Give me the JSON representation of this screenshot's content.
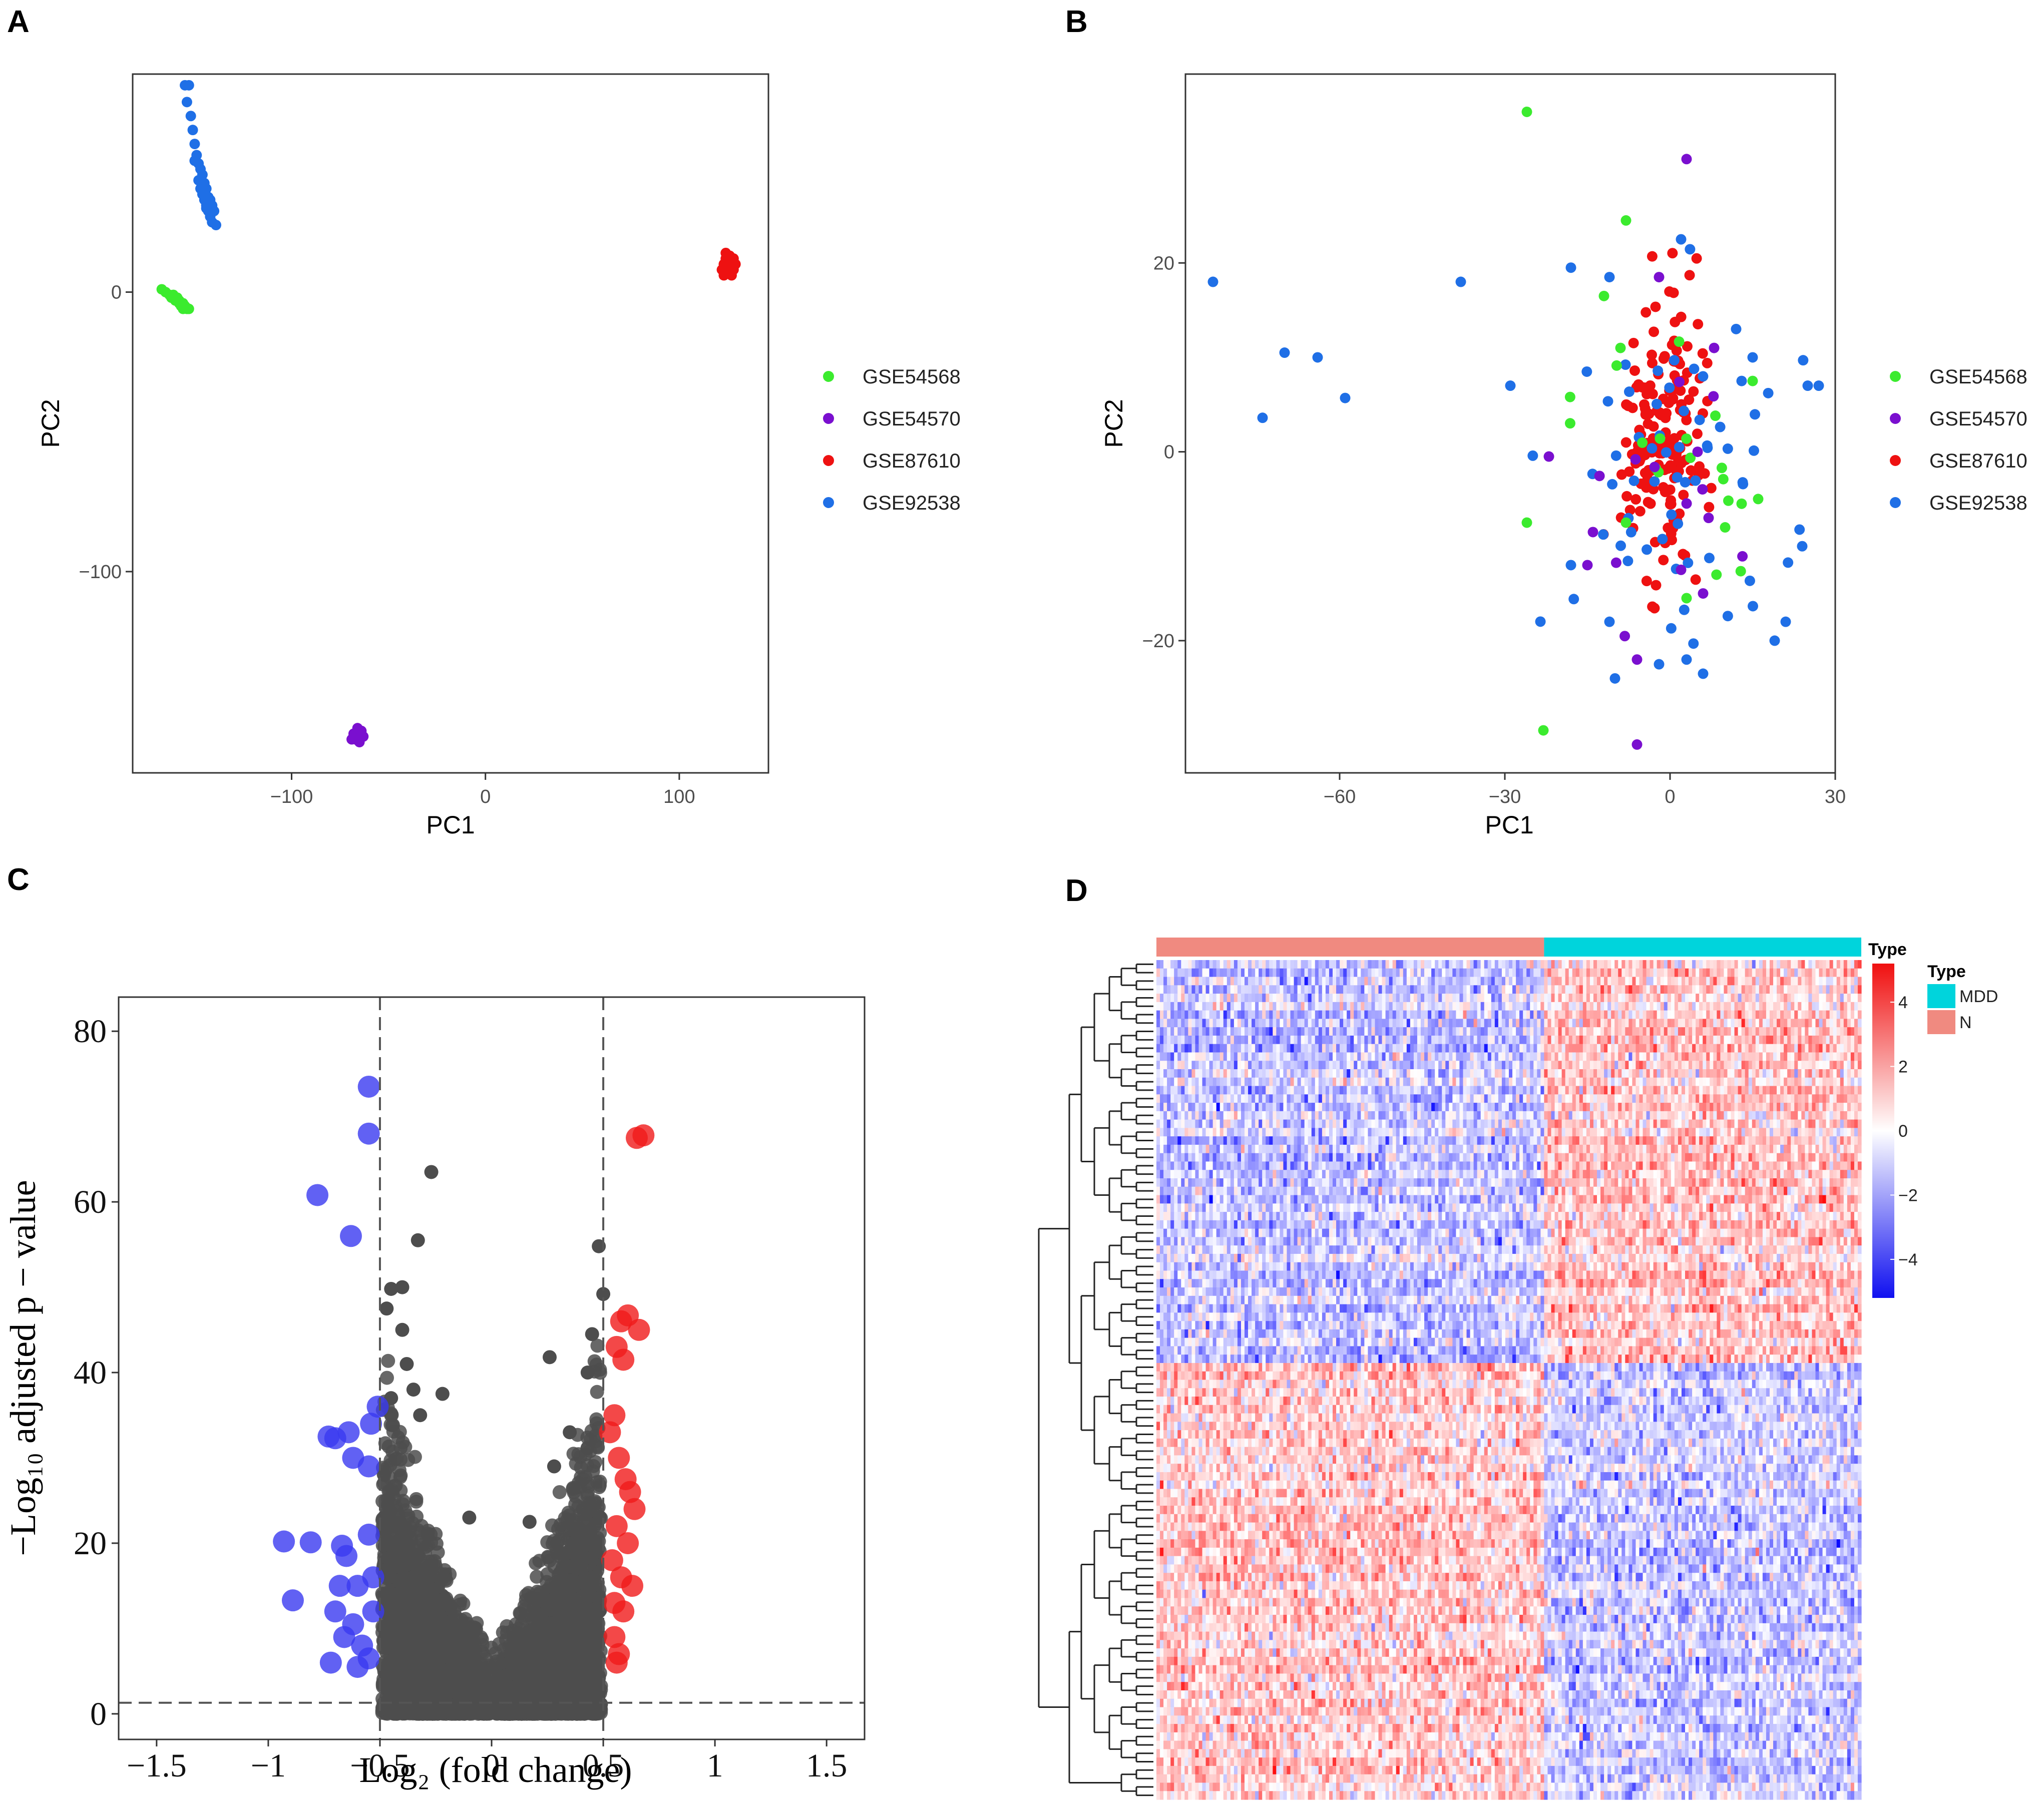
{
  "panels": [
    {
      "letter": "A"
    },
    {
      "letter": "B"
    },
    {
      "letter": "C"
    },
    {
      "letter": "D"
    }
  ],
  "colors": {
    "GSE54568": "#3BEB2E",
    "GSE54570": "#7A0FCF",
    "GSE87610": "#EE1111",
    "GSE92538": "#1F6FE6",
    "down": "#3A3AF0",
    "up": "#F01A1A",
    "ns": "#4D4D4D",
    "MDD": "#00D4DC",
    "N": "#F08A80",
    "heat_low": "#1010F0",
    "heat_mid": "#FFFFFF",
    "heat_high": "#F01010"
  },
  "chart_data": [
    {
      "panel": "A",
      "type": "scatter",
      "xlabel": "PC1",
      "ylabel": "PC2",
      "xlim": [
        -182,
        146
      ],
      "ylim": [
        -172,
        78
      ],
      "xticks": [
        {
          "v": -100,
          "label": "−100"
        },
        {
          "v": 0,
          "label": "0"
        },
        {
          "v": 100,
          "label": "100"
        }
      ],
      "yticks": [
        {
          "v": -100,
          "label": "−100"
        },
        {
          "v": 0,
          "label": "0"
        }
      ],
      "legend": [
        "GSE54568",
        "GSE54570",
        "GSE87610",
        "GSE92538"
      ],
      "legend_position": "right",
      "clusters": [
        {
          "name": "GSE92538",
          "points": [
            [
              -155,
              74
            ],
            [
              -153,
              74
            ],
            [
              -154,
              68
            ],
            [
              -152,
              63
            ],
            [
              -151,
              58
            ],
            [
              -150,
              53
            ],
            [
              -149,
              49
            ],
            [
              -148,
              46
            ],
            [
              -147,
              44
            ],
            [
              -146,
              42
            ],
            [
              -148,
              40
            ],
            [
              -145,
              39
            ],
            [
              -147,
              37
            ],
            [
              -144,
              37
            ],
            [
              -146,
              35
            ],
            [
              -143,
              34
            ],
            [
              -145,
              33
            ],
            [
              -142,
              33
            ],
            [
              -144,
              31
            ],
            [
              -141,
              31
            ],
            [
              -143,
              29
            ],
            [
              -140,
              29
            ],
            [
              -142,
              27
            ],
            [
              -141,
              25
            ],
            [
              -139,
              24
            ],
            [
              -150,
              47
            ],
            [
              -146,
              38
            ],
            [
              -144,
              30
            ]
          ]
        },
        {
          "name": "GSE54568",
          "points": [
            [
              -167,
              1
            ],
            [
              -165,
              0
            ],
            [
              -163,
              -1
            ],
            [
              -162,
              -2
            ],
            [
              -160,
              -3
            ],
            [
              -159,
              -2
            ],
            [
              -158,
              -4
            ],
            [
              -157,
              -5
            ],
            [
              -156,
              -4
            ],
            [
              -155,
              -5
            ],
            [
              -154,
              -6
            ],
            [
              -153,
              -6
            ],
            [
              -161,
              -1
            ],
            [
              -158,
              -3
            ],
            [
              -156,
              -6
            ]
          ]
        },
        {
          "name": "GSE87610",
          "points": [
            [
              124,
              14
            ],
            [
              126,
              13
            ],
            [
              128,
              12
            ],
            [
              125,
              11
            ],
            [
              127,
              10
            ],
            [
              123,
              10
            ],
            [
              126,
              9
            ],
            [
              124,
              8
            ],
            [
              128,
              8
            ],
            [
              125,
              7
            ],
            [
              127,
              6
            ],
            [
              123,
              6
            ],
            [
              126,
              12
            ],
            [
              129,
              10
            ],
            [
              124,
              12
            ],
            [
              122,
              8
            ]
          ]
        },
        {
          "name": "GSE54570",
          "points": [
            [
              -68,
              -158
            ],
            [
              -66,
              -159
            ],
            [
              -64,
              -157
            ],
            [
              -67,
              -160
            ],
            [
              -65,
              -161
            ],
            [
              -63,
              -159
            ],
            [
              -66,
              -156
            ],
            [
              -69,
              -160
            ]
          ]
        }
      ]
    },
    {
      "panel": "B",
      "type": "scatter",
      "xlabel": "PC1",
      "ylabel": "PC2",
      "xlim": [
        -88,
        30
      ],
      "ylim": [
        -34,
        40
      ],
      "xticks": [
        {
          "v": -60,
          "label": "−60"
        },
        {
          "v": -30,
          "label": "−30"
        },
        {
          "v": 0,
          "label": "0"
        },
        {
          "v": 30,
          "label": "30"
        }
      ],
      "yticks": [
        {
          "v": -20,
          "label": "−20"
        },
        {
          "v": 0,
          "label": "0"
        },
        {
          "v": 20,
          "label": "20"
        }
      ],
      "legend": [
        "GSE54568",
        "GSE54570",
        "GSE87610",
        "GSE92538"
      ],
      "legend_position": "right",
      "outliers": [
        {
          "name": "GSE92538",
          "points": [
            [
              -83,
              18
            ],
            [
              -38,
              18
            ],
            [
              -70,
              10.5
            ],
            [
              -64,
              10
            ],
            [
              -59,
              5.7
            ],
            [
              -74,
              3.6
            ],
            [
              -29,
              7
            ],
            [
              -11,
              -18
            ],
            [
              -2,
              -22.5
            ],
            [
              3,
              -22
            ],
            [
              6,
              -23.5
            ],
            [
              21,
              -18
            ],
            [
              19,
              -20
            ],
            [
              24,
              -10
            ],
            [
              -18,
              -12
            ],
            [
              2,
              22.5
            ],
            [
              -18,
              19.5
            ],
            [
              -11,
              18.5
            ],
            [
              12,
              13
            ],
            [
              15,
              10
            ],
            [
              25,
              7
            ],
            [
              27,
              7
            ],
            [
              13,
              7.5
            ]
          ]
        },
        {
          "name": "GSE54568",
          "points": [
            [
              -26,
              36
            ],
            [
              -8,
              24.5
            ],
            [
              -12,
              16.5
            ],
            [
              -23,
              -29.5
            ],
            [
              -26,
              -7.5
            ],
            [
              -8,
              -7.5
            ],
            [
              15,
              7.5
            ],
            [
              16,
              -5
            ],
            [
              13,
              -5.5
            ],
            [
              10,
              -8
            ],
            [
              3,
              -15.5
            ],
            [
              -9,
              11
            ]
          ]
        },
        {
          "name": "GSE54570",
          "points": [
            [
              3,
              31
            ],
            [
              -2,
              18.5
            ],
            [
              -6,
              -22
            ],
            [
              -6,
              -31
            ],
            [
              6,
              -15
            ],
            [
              -22,
              -0.5
            ],
            [
              8,
              11
            ],
            [
              7,
              -7
            ],
            [
              -14,
              -8.5
            ],
            [
              -15,
              -12
            ],
            [
              2,
              -12.5
            ],
            [
              5,
              0
            ]
          ]
        }
      ]
    },
    {
      "panel": "C",
      "type": "scatter",
      "xlabel": "Log₂ (fold change)",
      "ylabel": "−Log₁₀ adjusted p − value",
      "xlim": [
        -1.67,
        1.67
      ],
      "ylim": [
        -3,
        84
      ],
      "xticks": [
        {
          "v": -1.5,
          "label": "−1.5"
        },
        {
          "v": -1,
          "label": "−1"
        },
        {
          "v": -0.5,
          "label": "−0.5"
        },
        {
          "v": 0,
          "label": "0"
        },
        {
          "v": 0.5,
          "label": "0.5"
        },
        {
          "v": 1,
          "label": "1"
        },
        {
          "v": 1.5,
          "label": "1.5"
        }
      ],
      "yticks": [
        {
          "v": 0,
          "label": "0"
        },
        {
          "v": 20,
          "label": "20"
        },
        {
          "v": 40,
          "label": "40"
        },
        {
          "v": 60,
          "label": "60"
        },
        {
          "v": 80,
          "label": "80"
        }
      ],
      "vlines": [
        -0.5,
        0.5
      ],
      "hline": 1.3,
      "down": [
        [
          -0.55,
          73.5
        ],
        [
          -0.55,
          68
        ],
        [
          -0.78,
          60.8
        ],
        [
          -0.63,
          56
        ],
        [
          -0.51,
          36
        ],
        [
          -0.54,
          34
        ],
        [
          -0.73,
          32.5
        ],
        [
          -0.7,
          32.3
        ],
        [
          -0.64,
          33
        ],
        [
          -0.62,
          30
        ],
        [
          -0.55,
          29
        ],
        [
          -0.93,
          20.2
        ],
        [
          -0.81,
          20.1
        ],
        [
          -0.67,
          19.7
        ],
        [
          -0.65,
          18.5
        ],
        [
          -0.89,
          13.3
        ],
        [
          -0.55,
          21
        ],
        [
          -0.6,
          15
        ],
        [
          -0.7,
          12
        ],
        [
          -0.66,
          9
        ],
        [
          -0.58,
          8
        ],
        [
          -0.72,
          6
        ],
        [
          -0.6,
          5.5
        ],
        [
          -0.53,
          12
        ],
        [
          -0.53,
          16
        ],
        [
          -0.55,
          6.5
        ],
        [
          -0.68,
          15
        ],
        [
          -0.62,
          10.5
        ]
      ],
      "up": [
        [
          0.65,
          67.5
        ],
        [
          0.68,
          67.8
        ],
        [
          0.61,
          46.7
        ],
        [
          0.58,
          46
        ],
        [
          0.66,
          45
        ],
        [
          0.56,
          43
        ],
        [
          0.59,
          41.5
        ],
        [
          0.55,
          35
        ],
        [
          0.53,
          33
        ],
        [
          0.57,
          30
        ],
        [
          0.6,
          27.5
        ],
        [
          0.62,
          26
        ],
        [
          0.64,
          24
        ],
        [
          0.56,
          22
        ],
        [
          0.61,
          20
        ],
        [
          0.54,
          18
        ],
        [
          0.58,
          16
        ],
        [
          0.63,
          15
        ],
        [
          0.55,
          13
        ],
        [
          0.59,
          12
        ],
        [
          0.55,
          9
        ],
        [
          0.57,
          7
        ],
        [
          0.56,
          6
        ]
      ],
      "ns_highlight": [
        [
          -0.27,
          63.5
        ],
        [
          -0.33,
          55.5
        ],
        [
          -0.4,
          50
        ],
        [
          -0.45,
          49.8
        ],
        [
          -0.47,
          47.5
        ],
        [
          -0.4,
          45
        ],
        [
          -0.38,
          41
        ],
        [
          -0.45,
          37
        ],
        [
          -0.35,
          38
        ],
        [
          -0.22,
          37.5
        ],
        [
          0.26,
          41.8
        ],
        [
          0.48,
          54.8
        ],
        [
          0.5,
          49.2
        ],
        [
          0.45,
          44.5
        ],
        [
          0.43,
          40
        ],
        [
          0.28,
          29
        ],
        [
          0.17,
          22.5
        ],
        [
          -0.1,
          23
        ],
        [
          0.35,
          33
        ],
        [
          -0.32,
          35
        ]
      ]
    },
    {
      "panel": "D",
      "type": "heatmap",
      "annotation_title": "Type",
      "legend_title": "Type",
      "groups": [
        {
          "name": "N",
          "columns": 110
        },
        {
          "name": "MDD",
          "columns": 90
        }
      ],
      "legend_labels": [
        "MDD",
        "N"
      ],
      "rows": 100,
      "row_clusters": [
        {
          "pattern": "N_low_MDD_high",
          "rows": 48
        },
        {
          "pattern": "N_high_MDD_low",
          "rows": 52
        }
      ],
      "colorbar_ticks": [
        {
          "v": 4,
          "label": "4"
        },
        {
          "v": 2,
          "label": "2"
        },
        {
          "v": 0,
          "label": "0"
        },
        {
          "v": -2,
          "label": "−2"
        },
        {
          "v": -4,
          "label": "−4"
        }
      ],
      "colorbar_range": [
        -5.2,
        5.2
      ]
    }
  ]
}
